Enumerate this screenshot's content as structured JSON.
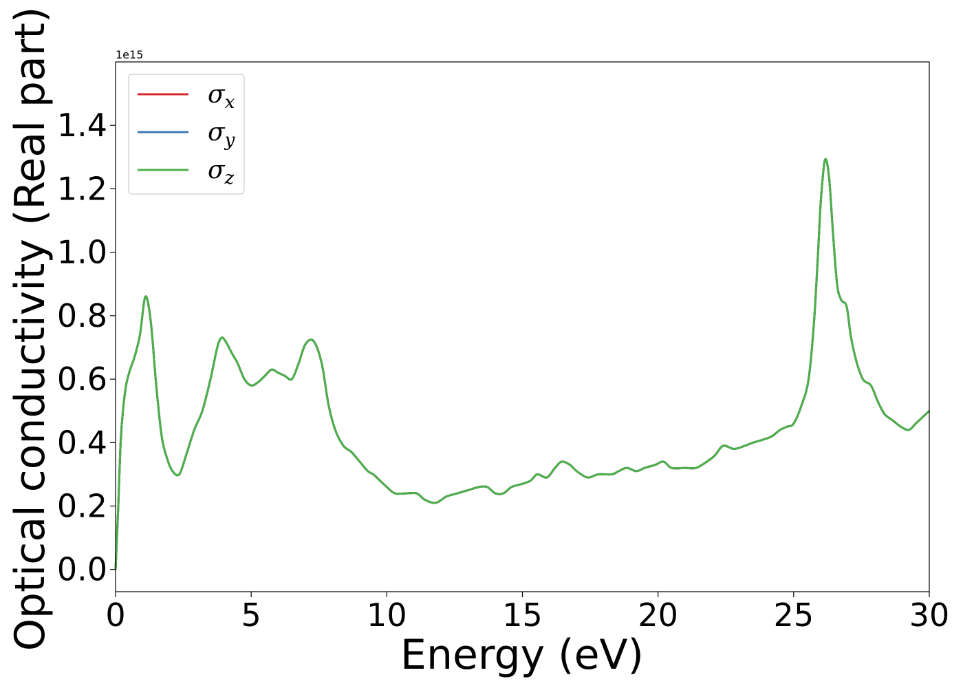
{
  "chart_data": {
    "type": "line",
    "title": "",
    "xlabel": "Energy (eV)",
    "ylabel": "Optical conductivity (Real part)",
    "y_offset_label": "1e15",
    "xlim": [
      0,
      30
    ],
    "ylim": [
      -0.07,
      1.6
    ],
    "y_scale_factor": 1000000000000000.0,
    "xticks": [
      0,
      5,
      10,
      15,
      20,
      25,
      30
    ],
    "xtick_labels": [
      "0",
      "5",
      "10",
      "15",
      "20",
      "25",
      "30"
    ],
    "yticks": [
      0.0,
      0.2,
      0.4,
      0.6,
      0.8,
      1.0,
      1.2,
      1.4
    ],
    "ytick_labels": [
      "0.0",
      "0.2",
      "0.4",
      "0.6",
      "0.8",
      "1.0",
      "1.2",
      "1.4"
    ],
    "grid": false,
    "legend_position": "top-left",
    "series": [
      {
        "name": "σx",
        "symbol": "σ",
        "subscript": "x",
        "color": "#d62728"
      },
      {
        "name": "σy",
        "symbol": "σ",
        "subscript": "y",
        "color": "#3b78b4"
      },
      {
        "name": "σz",
        "symbol": "σ",
        "subscript": "z",
        "color": "#4daf4a"
      }
    ],
    "x": [
      0.0,
      0.1,
      0.2,
      0.35,
      0.5,
      0.7,
      0.9,
      1.1,
      1.3,
      1.5,
      1.7,
      1.9,
      2.1,
      2.35,
      2.6,
      2.9,
      3.2,
      3.5,
      3.75,
      3.9,
      4.05,
      4.3,
      4.5,
      4.75,
      5.0,
      5.25,
      5.5,
      5.75,
      6.0,
      6.25,
      6.5,
      6.75,
      7.0,
      7.3,
      7.6,
      7.85,
      8.1,
      8.4,
      8.7,
      9.0,
      9.3,
      9.5,
      9.75,
      10.0,
      10.3,
      10.7,
      11.1,
      11.4,
      11.8,
      12.2,
      12.6,
      13.0,
      13.4,
      13.7,
      14.0,
      14.3,
      14.6,
      15.0,
      15.3,
      15.55,
      15.9,
      16.2,
      16.45,
      16.75,
      17.0,
      17.4,
      17.8,
      18.3,
      18.55,
      18.85,
      19.2,
      19.5,
      19.9,
      20.2,
      20.5,
      21.0,
      21.4,
      21.8,
      22.1,
      22.4,
      22.8,
      23.2,
      23.5,
      23.9,
      24.2,
      24.5,
      24.75,
      25.0,
      25.3,
      25.55,
      25.75,
      25.9,
      26.0,
      26.15,
      26.3,
      26.45,
      26.6,
      26.75,
      26.95,
      27.1,
      27.3,
      27.55,
      27.85,
      28.1,
      28.35,
      28.65,
      28.95,
      29.25,
      29.5,
      29.75,
      30.0
    ],
    "y": [
      0.0,
      0.2,
      0.42,
      0.56,
      0.62,
      0.67,
      0.74,
      0.86,
      0.78,
      0.58,
      0.42,
      0.35,
      0.31,
      0.3,
      0.36,
      0.44,
      0.5,
      0.6,
      0.7,
      0.73,
      0.72,
      0.68,
      0.65,
      0.6,
      0.58,
      0.59,
      0.61,
      0.63,
      0.62,
      0.61,
      0.6,
      0.65,
      0.71,
      0.72,
      0.65,
      0.52,
      0.44,
      0.39,
      0.37,
      0.34,
      0.31,
      0.3,
      0.28,
      0.26,
      0.24,
      0.24,
      0.24,
      0.22,
      0.21,
      0.23,
      0.24,
      0.25,
      0.26,
      0.26,
      0.24,
      0.24,
      0.26,
      0.27,
      0.28,
      0.3,
      0.29,
      0.32,
      0.34,
      0.33,
      0.31,
      0.29,
      0.3,
      0.3,
      0.31,
      0.32,
      0.31,
      0.32,
      0.33,
      0.34,
      0.32,
      0.32,
      0.32,
      0.34,
      0.36,
      0.39,
      0.38,
      0.39,
      0.4,
      0.41,
      0.42,
      0.44,
      0.45,
      0.46,
      0.52,
      0.6,
      0.78,
      1.0,
      1.16,
      1.29,
      1.24,
      1.06,
      0.9,
      0.85,
      0.83,
      0.74,
      0.66,
      0.6,
      0.58,
      0.53,
      0.49,
      0.47,
      0.45,
      0.44,
      0.46,
      0.48,
      0.5
    ]
  }
}
